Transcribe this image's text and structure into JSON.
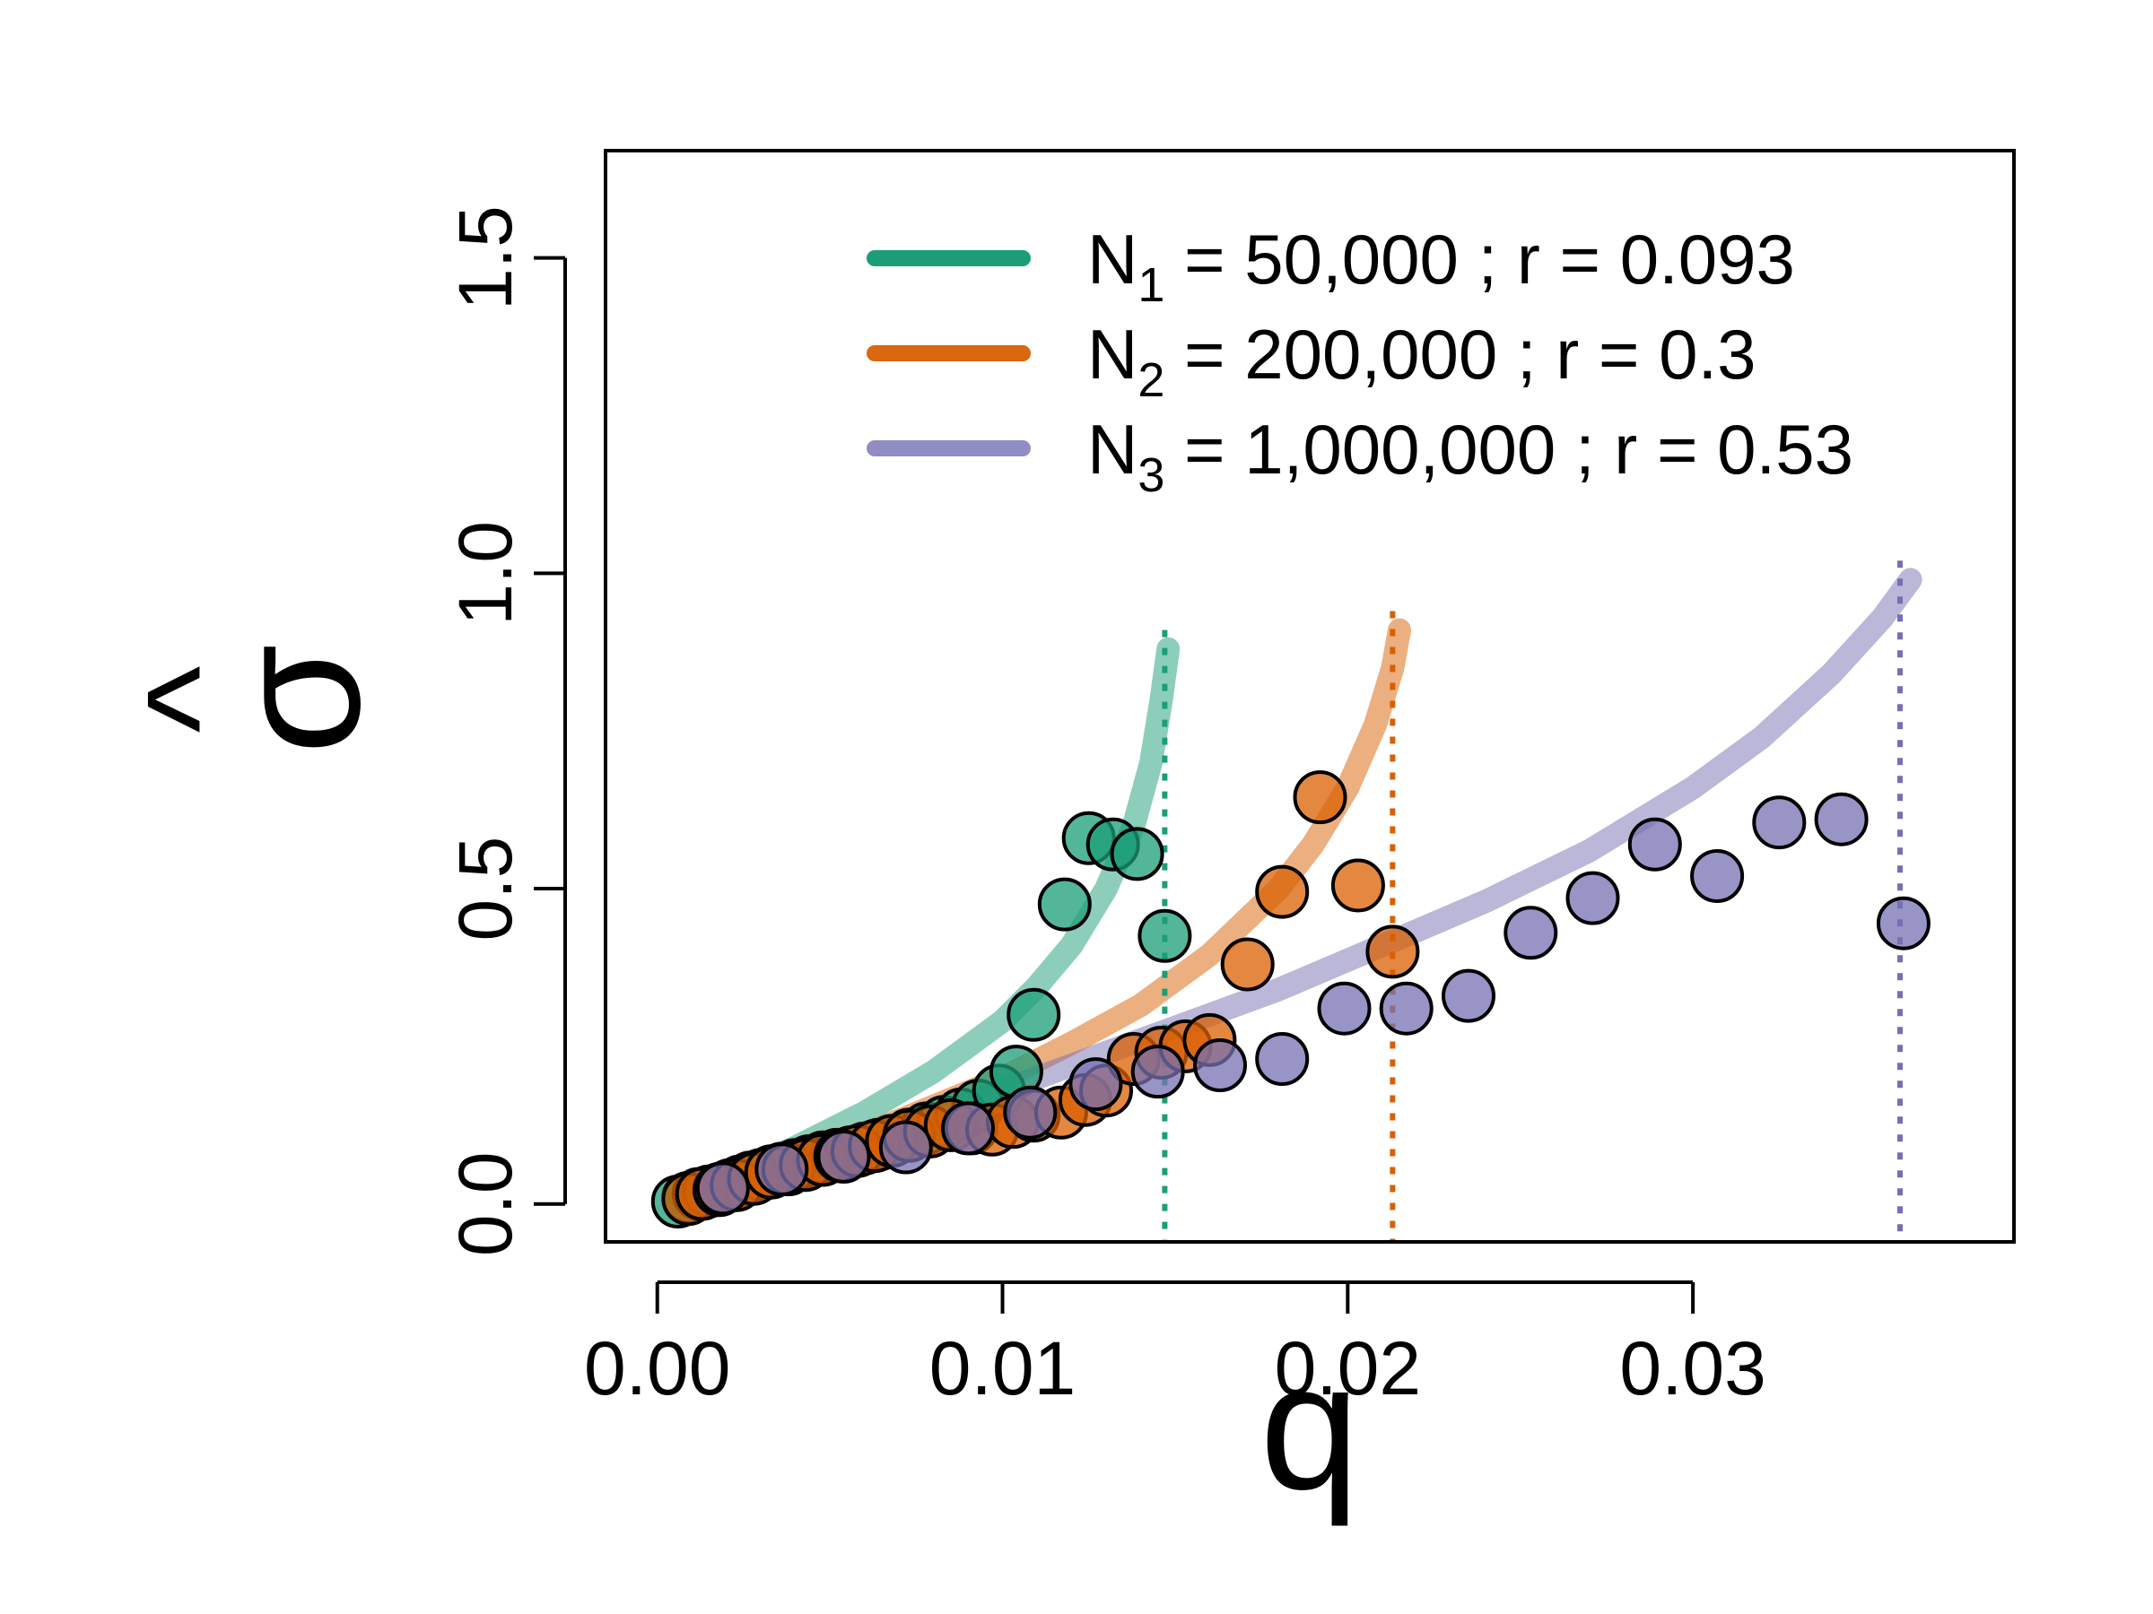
{
  "chart_data": {
    "type": "scatter",
    "title": "",
    "xlabel": "q",
    "ylabel": "σ̂",
    "ylabel_symbol": "σ",
    "ylabel_hat": "^",
    "xlim": [
      -0.0015,
      0.0393
    ],
    "ylim": [
      -0.06,
      1.67
    ],
    "x_ticks": [
      0.0,
      0.01,
      0.02,
      0.03
    ],
    "x_tick_labels": [
      "0.00",
      "0.01",
      "0.02",
      "0.03"
    ],
    "y_ticks": [
      0.0,
      0.5,
      1.0,
      1.5
    ],
    "y_tick_labels": [
      "0.0",
      "0.5",
      "1.0",
      "1.5"
    ],
    "grid": false,
    "legend_position": "top-right",
    "series": [
      {
        "name": "N1 = 50,000 ; r = 0.093",
        "legend_prefix": "N",
        "legend_sub": "1",
        "legend_rest": " = 50,000 ;  r = 0.093",
        "color": "#1b9e77",
        "cutoff": 0.0147,
        "curve": [
          [
            0.0005,
            0.005
          ],
          [
            0.002,
            0.04
          ],
          [
            0.004,
            0.09
          ],
          [
            0.006,
            0.145
          ],
          [
            0.008,
            0.21
          ],
          [
            0.01,
            0.29
          ],
          [
            0.011,
            0.345
          ],
          [
            0.012,
            0.41
          ],
          [
            0.013,
            0.5
          ],
          [
            0.0138,
            0.6
          ],
          [
            0.0143,
            0.7
          ],
          [
            0.0146,
            0.8
          ],
          [
            0.0148,
            0.88
          ]
        ],
        "points": [
          [
            0.0006,
            0.004
          ],
          [
            0.0009,
            0.01
          ],
          [
            0.0012,
            0.016
          ],
          [
            0.0015,
            0.02
          ],
          [
            0.0018,
            0.024
          ],
          [
            0.0021,
            0.03
          ],
          [
            0.0024,
            0.036
          ],
          [
            0.0027,
            0.042
          ],
          [
            0.003,
            0.046
          ],
          [
            0.0033,
            0.052
          ],
          [
            0.0036,
            0.056
          ],
          [
            0.004,
            0.062
          ],
          [
            0.0044,
            0.068
          ],
          [
            0.0048,
            0.074
          ],
          [
            0.0052,
            0.078
          ],
          [
            0.0056,
            0.082
          ],
          [
            0.006,
            0.088
          ],
          [
            0.0064,
            0.094
          ],
          [
            0.0068,
            0.1
          ],
          [
            0.0073,
            0.11
          ],
          [
            0.0078,
            0.12
          ],
          [
            0.0083,
            0.13
          ],
          [
            0.0088,
            0.142
          ],
          [
            0.0093,
            0.156
          ],
          [
            0.0099,
            0.18
          ],
          [
            0.0104,
            0.21
          ],
          [
            0.0109,
            0.3
          ],
          [
            0.0118,
            0.475
          ],
          [
            0.0125,
            0.58
          ],
          [
            0.0132,
            0.57
          ],
          [
            0.0139,
            0.555
          ],
          [
            0.0147,
            0.425
          ]
        ]
      },
      {
        "name": "N2 = 200,000 ; r = 0.3",
        "legend_prefix": "N",
        "legend_sub": "2",
        "legend_rest": " = 200,000 ;  r = 0.3",
        "color": "#d95f02",
        "cutoff": 0.0213,
        "curve": [
          [
            0.0005,
            0.004
          ],
          [
            0.002,
            0.03
          ],
          [
            0.004,
            0.07
          ],
          [
            0.006,
            0.11
          ],
          [
            0.008,
            0.155
          ],
          [
            0.01,
            0.2
          ],
          [
            0.012,
            0.255
          ],
          [
            0.014,
            0.315
          ],
          [
            0.016,
            0.395
          ],
          [
            0.018,
            0.5
          ],
          [
            0.019,
            0.57
          ],
          [
            0.02,
            0.66
          ],
          [
            0.0208,
            0.76
          ],
          [
            0.0213,
            0.85
          ],
          [
            0.0215,
            0.91
          ]
        ],
        "points": [
          [
            0.0009,
            0.008
          ],
          [
            0.0013,
            0.016
          ],
          [
            0.0018,
            0.022
          ],
          [
            0.0023,
            0.03
          ],
          [
            0.0028,
            0.04
          ],
          [
            0.0033,
            0.05
          ],
          [
            0.0038,
            0.055
          ],
          [
            0.0043,
            0.062
          ],
          [
            0.0048,
            0.07
          ],
          [
            0.0053,
            0.076
          ],
          [
            0.0058,
            0.084
          ],
          [
            0.0063,
            0.092
          ],
          [
            0.0068,
            0.1
          ],
          [
            0.0073,
            0.108
          ],
          [
            0.0079,
            0.115
          ],
          [
            0.0085,
            0.125
          ],
          [
            0.0091,
            0.12
          ],
          [
            0.0097,
            0.118
          ],
          [
            0.0103,
            0.13
          ],
          [
            0.0109,
            0.14
          ],
          [
            0.0117,
            0.145
          ],
          [
            0.0124,
            0.165
          ],
          [
            0.013,
            0.18
          ],
          [
            0.0138,
            0.23
          ],
          [
            0.0146,
            0.24
          ],
          [
            0.0153,
            0.25
          ],
          [
            0.016,
            0.26
          ],
          [
            0.0171,
            0.38
          ],
          [
            0.0181,
            0.495
          ],
          [
            0.0192,
            0.645
          ],
          [
            0.0203,
            0.505
          ],
          [
            0.0213,
            0.4
          ]
        ]
      },
      {
        "name": "N3 = 1,000,000 ; r = 0.53",
        "legend_prefix": "N",
        "legend_sub": "3",
        "legend_rest": " = 1,000,000 ;  r = 0.53",
        "color": "#7570b3",
        "cutoff": 0.036,
        "curve": [
          [
            0.0005,
            0.003
          ],
          [
            0.003,
            0.045
          ],
          [
            0.006,
            0.1
          ],
          [
            0.009,
            0.16
          ],
          [
            0.012,
            0.22
          ],
          [
            0.015,
            0.28
          ],
          [
            0.018,
            0.34
          ],
          [
            0.021,
            0.41
          ],
          [
            0.024,
            0.48
          ],
          [
            0.027,
            0.56
          ],
          [
            0.03,
            0.66
          ],
          [
            0.032,
            0.74
          ],
          [
            0.034,
            0.84
          ],
          [
            0.0355,
            0.93
          ],
          [
            0.0363,
            0.99
          ]
        ],
        "points": [
          [
            0.0019,
            0.025
          ],
          [
            0.0036,
            0.055
          ],
          [
            0.0054,
            0.075
          ],
          [
            0.0072,
            0.09
          ],
          [
            0.009,
            0.12
          ],
          [
            0.0108,
            0.145
          ],
          [
            0.0127,
            0.19
          ],
          [
            0.0145,
            0.21
          ],
          [
            0.0163,
            0.22
          ],
          [
            0.0181,
            0.23
          ],
          [
            0.0199,
            0.31
          ],
          [
            0.0217,
            0.31
          ],
          [
            0.0235,
            0.33
          ],
          [
            0.0253,
            0.43
          ],
          [
            0.0271,
            0.485
          ],
          [
            0.0289,
            0.57
          ],
          [
            0.0307,
            0.52
          ],
          [
            0.0325,
            0.605
          ],
          [
            0.0343,
            0.61
          ],
          [
            0.0361,
            0.445
          ]
        ]
      }
    ]
  }
}
